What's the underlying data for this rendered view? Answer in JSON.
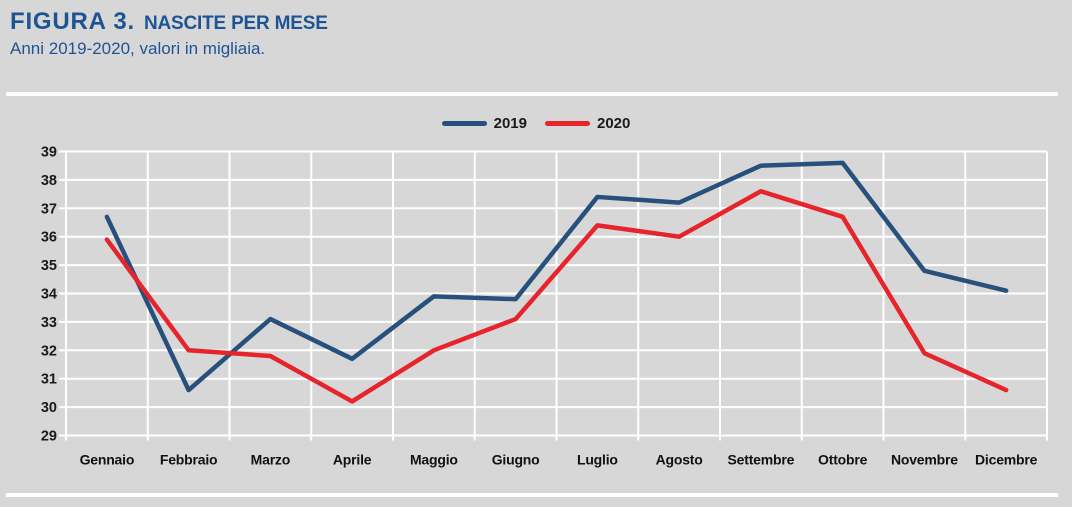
{
  "header": {
    "figure_label": "FIGURA 3.",
    "title": "NASCITE PER MESE",
    "subtitle": "Anni 2019-2020, valori in migliaia."
  },
  "chart_data": {
    "type": "line",
    "title": "NASCITE PER MESE",
    "subtitle": "Anni 2019-2020, valori in migliaia.",
    "categories": [
      "Gennaio",
      "Febbraio",
      "Marzo",
      "Aprile",
      "Maggio",
      "Giugno",
      "Luglio",
      "Agosto",
      "Settembre",
      "Ottobre",
      "Novembre",
      "Dicembre"
    ],
    "series": [
      {
        "name": "2019",
        "color": "#27507d",
        "values": [
          36.7,
          30.6,
          33.1,
          31.7,
          33.9,
          33.8,
          37.4,
          37.2,
          38.5,
          38.6,
          34.8,
          34.1
        ]
      },
      {
        "name": "2020",
        "color": "#e6242b",
        "values": [
          35.9,
          32.0,
          31.8,
          30.2,
          32.0,
          33.1,
          36.4,
          36.0,
          37.6,
          36.7,
          31.9,
          30.6
        ]
      }
    ],
    "ylim": [
      29,
      39
    ],
    "yticks": [
      29,
      30,
      31,
      32,
      33,
      34,
      35,
      36,
      37,
      38,
      39
    ],
    "grid": true,
    "gridline_color": "#ffffff",
    "legend_position": "top-center"
  }
}
